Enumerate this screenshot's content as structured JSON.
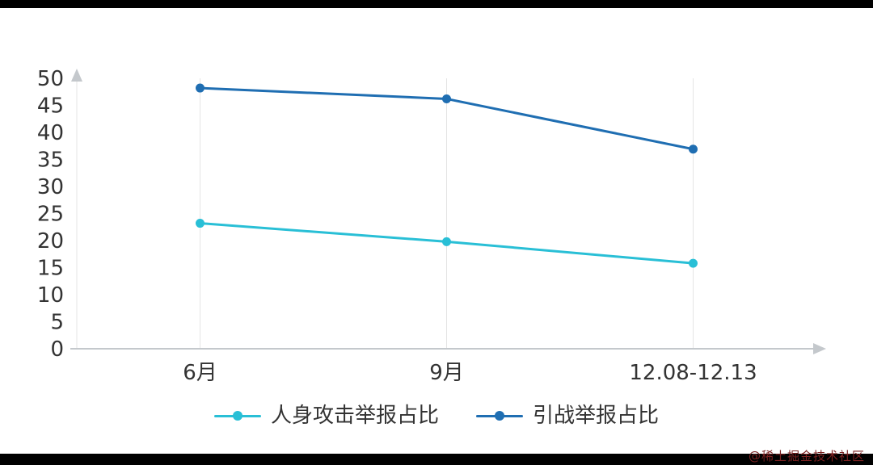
{
  "chart_data": {
    "type": "line",
    "categories": [
      "6月",
      "9月",
      "12.08-12.13"
    ],
    "series": [
      {
        "name": "人身攻击举报占比",
        "color": "#29bfd6",
        "values": [
          23.2,
          19.8,
          15.8
        ]
      },
      {
        "name": "引战举报占比",
        "color": "#1f6eb2",
        "values": [
          48.2,
          46.2,
          36.9
        ]
      }
    ],
    "ylim": [
      0,
      50
    ],
    "ytick_step": 5,
    "yticks": [
      0,
      5,
      10,
      15,
      20,
      25,
      30,
      35,
      40,
      45,
      50
    ],
    "grid": "vertical-category-lines",
    "legend_position": "bottom",
    "legend": [
      "人身攻击举报占比",
      "引战举报占比"
    ]
  },
  "watermark": "@稀土掘金技术社区",
  "colors": {
    "grid": "#e4e4e4",
    "axis": "#c4c8cc",
    "text": "#333333"
  }
}
